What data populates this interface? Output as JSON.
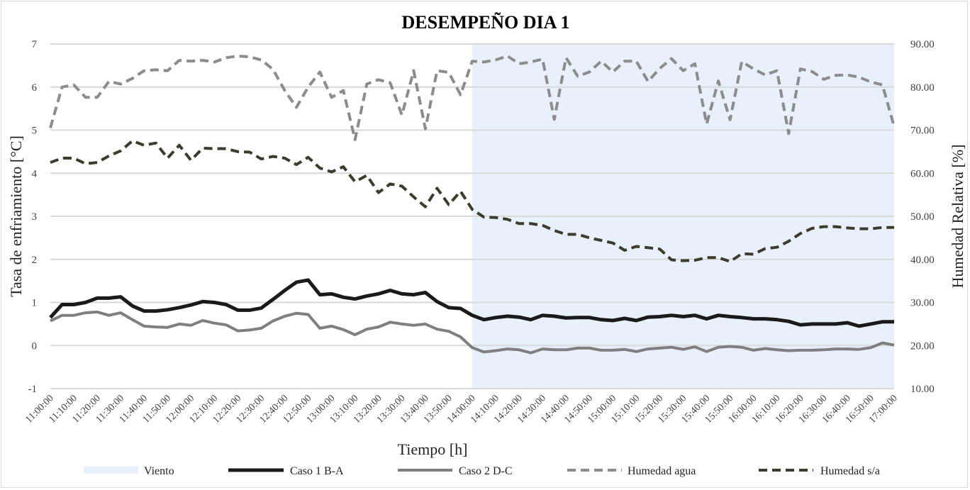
{
  "chart_data": {
    "type": "line",
    "title": "DESEMPEÑO DIA 1",
    "xlabel": "Tiempo [h]",
    "ylabel": "Tasa de enfriamiento [°C]",
    "y2label": "Humedad Relativa [%]",
    "ylim": [
      -1,
      7
    ],
    "y2lim": [
      10,
      90
    ],
    "yticks": [
      "-1",
      "0",
      "1",
      "2",
      "3",
      "4",
      "5",
      "6",
      "7"
    ],
    "y2ticks": [
      "10.00",
      "20.00",
      "30.00",
      "40.00",
      "50.00",
      "60.00",
      "70.00",
      "80.00",
      "90.00"
    ],
    "x": [
      "11:00:00",
      "11:05:00",
      "11:10:00",
      "11:15:00",
      "11:20:00",
      "11:25:00",
      "11:30:00",
      "11:35:00",
      "11:40:00",
      "11:45:00",
      "11:50:00",
      "11:55:00",
      "12:00:00",
      "12:05:00",
      "12:10:00",
      "12:15:00",
      "12:20:00",
      "12:25:00",
      "12:30:00",
      "12:35:00",
      "12:40:00",
      "12:45:00",
      "12:50:00",
      "12:55:00",
      "13:00:00",
      "13:05:00",
      "13:10:00",
      "13:15:00",
      "13:20:00",
      "13:25:00",
      "13:30:00",
      "13:35:00",
      "13:40:00",
      "13:45:00",
      "13:50:00",
      "13:55:00",
      "14:00:00",
      "14:05:00",
      "14:10:00",
      "14:15:00",
      "14:20:00",
      "14:25:00",
      "14:30:00",
      "14:35:00",
      "14:40:00",
      "14:45:00",
      "14:50:00",
      "14:55:00",
      "15:00:00",
      "15:05:00",
      "15:10:00",
      "15:15:00",
      "15:20:00",
      "15:25:00",
      "15:30:00",
      "15:35:00",
      "15:40:00",
      "15:45:00",
      "15:50:00",
      "15:55:00",
      "16:00:00",
      "16:05:00",
      "16:10:00",
      "16:15:00",
      "16:20:00",
      "16:25:00",
      "16:30:00",
      "16:35:00",
      "16:40:00",
      "16:45:00",
      "16:50:00",
      "16:55:00",
      "17:00:00"
    ],
    "xtick_labels": [
      "11:00:00",
      "11:10:00",
      "11:20:00",
      "11:30:00",
      "11:40:00",
      "11:50:00",
      "12:00:00",
      "12:10:00",
      "12:20:00",
      "12:30:00",
      "12:40:00",
      "12:50:00",
      "13:00:00",
      "13:10:00",
      "13:20:00",
      "13:30:00",
      "13:40:00",
      "13:50:00",
      "14:00:00",
      "14:10:00",
      "14:20:00",
      "14:30:00",
      "14:40:00",
      "14:50:00",
      "15:00:00",
      "15:10:00",
      "15:20:00",
      "15:30:00",
      "15:40:00",
      "15:50:00",
      "16:00:00",
      "16:10:00",
      "16:20:00",
      "16:30:00",
      "16:40:00",
      "16:50:00",
      "17:00:00"
    ],
    "shaded_region": {
      "name": "Viento",
      "from": "14:00:00",
      "to": "17:00:00",
      "color": "#e8f0fc"
    },
    "series": [
      {
        "name": "Caso 1 B-A",
        "axis": "left",
        "color": "#1a1a1a",
        "style": "solid",
        "values": [
          0.65,
          0.95,
          0.95,
          1.0,
          1.1,
          1.1,
          1.13,
          0.92,
          0.8,
          0.8,
          0.83,
          0.88,
          0.94,
          1.02,
          1.0,
          0.95,
          0.82,
          0.82,
          0.87,
          1.07,
          1.28,
          1.47,
          1.52,
          1.18,
          1.2,
          1.12,
          1.08,
          1.15,
          1.2,
          1.28,
          1.2,
          1.18,
          1.23,
          1.02,
          0.88,
          0.86,
          0.7,
          0.6,
          0.65,
          0.68,
          0.66,
          0.6,
          0.7,
          0.68,
          0.64,
          0.65,
          0.65,
          0.6,
          0.58,
          0.63,
          0.58,
          0.66,
          0.67,
          0.7,
          0.67,
          0.7,
          0.62,
          0.7,
          0.67,
          0.65,
          0.62,
          0.62,
          0.6,
          0.56,
          0.48,
          0.5,
          0.5,
          0.5,
          0.53,
          0.45,
          0.5,
          0.55,
          0.55
        ]
      },
      {
        "name": "Caso 2 D-C",
        "axis": "left",
        "color": "#7f7f7f",
        "style": "solid",
        "values": [
          0.57,
          0.7,
          0.7,
          0.76,
          0.78,
          0.7,
          0.76,
          0.6,
          0.45,
          0.43,
          0.42,
          0.5,
          0.47,
          0.58,
          0.52,
          0.48,
          0.34,
          0.36,
          0.4,
          0.57,
          0.68,
          0.75,
          0.72,
          0.4,
          0.45,
          0.37,
          0.25,
          0.38,
          0.43,
          0.54,
          0.5,
          0.47,
          0.5,
          0.38,
          0.33,
          0.2,
          -0.05,
          -0.15,
          -0.12,
          -0.08,
          -0.1,
          -0.17,
          -0.08,
          -0.1,
          -0.1,
          -0.06,
          -0.06,
          -0.11,
          -0.11,
          -0.09,
          -0.14,
          -0.08,
          -0.06,
          -0.04,
          -0.09,
          -0.03,
          -0.14,
          -0.04,
          -0.02,
          -0.04,
          -0.11,
          -0.07,
          -0.1,
          -0.12,
          -0.11,
          -0.11,
          -0.1,
          -0.08,
          -0.08,
          -0.09,
          -0.05,
          0.06,
          0.01
        ]
      },
      {
        "name": "Humedad agua",
        "axis": "right",
        "color": "#8c8c8c",
        "style": "dashed",
        "values": [
          70.5,
          80,
          80.5,
          77.6,
          77.6,
          81.3,
          80.7,
          82,
          83.8,
          84,
          83.8,
          86.2,
          86,
          86.2,
          85.8,
          86.8,
          87.2,
          87,
          86.3,
          84.1,
          79.2,
          75.3,
          80,
          83.5,
          77.6,
          79.2,
          67.8,
          80.7,
          81.7,
          81,
          73.5,
          83.8,
          70.3,
          83.8,
          83.4,
          78.2,
          86,
          85.8,
          86.3,
          87.2,
          85.4,
          85.8,
          86.5,
          72.5,
          86.8,
          82.5,
          83.5,
          86,
          83.5,
          86,
          86,
          81.3,
          84.3,
          86.6,
          83.8,
          85.4,
          71.4,
          81.4,
          72.4,
          85.9,
          84.2,
          82.8,
          83.8,
          69.2,
          84.2,
          83.6,
          81.8,
          82.7,
          82.8,
          82.3,
          81.2,
          80.5,
          70.8
        ]
      },
      {
        "name": "Humedad s/a",
        "axis": "right",
        "color": "#3d3b2b",
        "style": "dashed",
        "values": [
          62.5,
          63.5,
          63.5,
          62.2,
          62.5,
          64,
          65.2,
          67.5,
          66.5,
          67,
          63.5,
          66.5,
          63,
          65.8,
          65.7,
          65.7,
          65,
          64.9,
          63.3,
          63.9,
          63.5,
          62,
          63.7,
          61.2,
          60.3,
          61.5,
          58,
          59.5,
          55.5,
          57.5,
          57,
          54.5,
          52.2,
          56.5,
          52.7,
          55.8,
          51.6,
          49.8,
          49.7,
          49.3,
          48.3,
          48.3,
          47.9,
          46.7,
          45.8,
          45.8,
          45,
          44.4,
          43.8,
          42.1,
          43,
          42.7,
          42.4,
          39.9,
          39.7,
          39.8,
          40.4,
          40.4,
          39.5,
          41.3,
          41.2,
          42.5,
          42.8,
          44.2,
          46,
          47.2,
          47.6,
          47.6,
          47.3,
          47.1,
          47.1,
          47.4,
          47.4
        ]
      }
    ],
    "legend": [
      "Viento",
      "Caso 1 B-A",
      "Caso 2 D-C",
      "Humedad agua",
      "Humedad s/a"
    ],
    "legend_position": "bottom",
    "grid": true
  }
}
